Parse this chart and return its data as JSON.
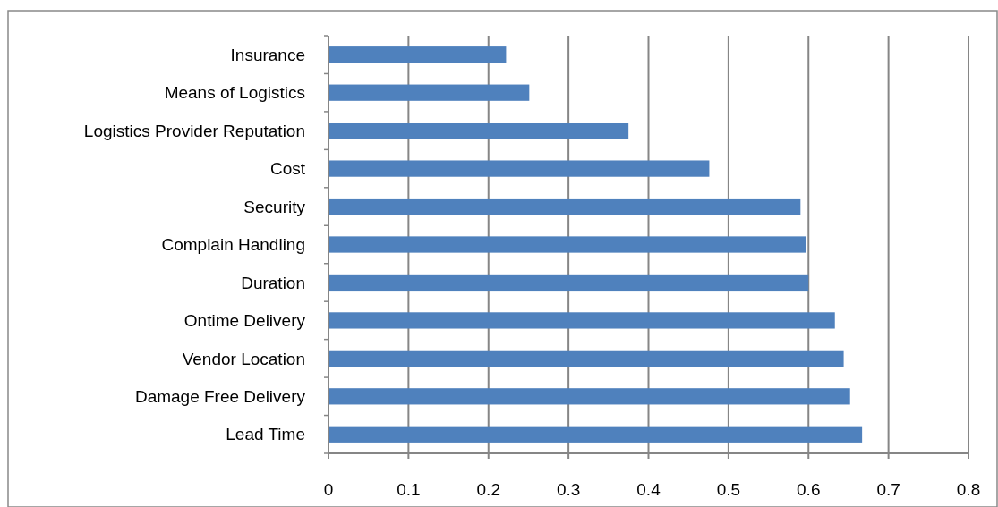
{
  "chart_data": {
    "type": "bar",
    "orientation": "horizontal",
    "categories": [
      "Insurance",
      "Means of Logistics",
      "Logistics Provider Reputation",
      "Cost",
      "Security",
      "Complain Handling",
      "Duration",
      "Ontime Delivery",
      "Vendor Location",
      "Damage Free Delivery",
      "Lead Time"
    ],
    "values": [
      0.222,
      0.251,
      0.375,
      0.476,
      0.59,
      0.597,
      0.6,
      0.633,
      0.644,
      0.652,
      0.667
    ],
    "color": "#4f81bd",
    "xlim": [
      0,
      0.8
    ],
    "xticks": [
      0,
      0.1,
      0.2,
      0.3,
      0.4,
      0.5,
      0.6,
      0.7,
      0.8
    ],
    "grid": "x"
  }
}
